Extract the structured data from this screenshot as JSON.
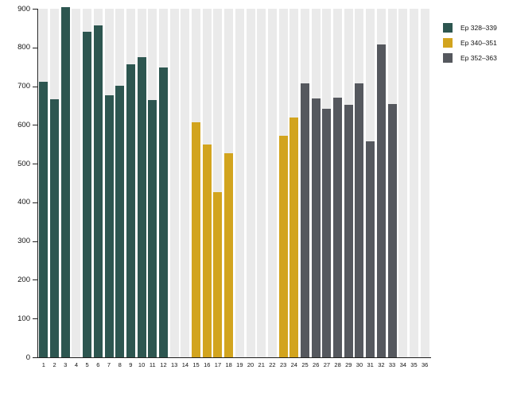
{
  "chart_data": {
    "type": "bar",
    "title": "",
    "xlabel": "",
    "ylabel": "",
    "ylim": [
      0,
      900
    ],
    "ytick_step": 100,
    "yticks": [
      "0",
      "100",
      "200",
      "300",
      "400",
      "500",
      "600",
      "700",
      "800",
      "900"
    ],
    "grid": false,
    "background_bands": true,
    "legend_position": "top-right",
    "categories": [
      "1",
      "2",
      "3",
      "4",
      "5",
      "6",
      "7",
      "8",
      "9",
      "10",
      "11",
      "12",
      "13",
      "14",
      "15",
      "16",
      "17",
      "18",
      "19",
      "20",
      "21",
      "22",
      "23",
      "24",
      "25",
      "26",
      "27",
      "28",
      "29",
      "30",
      "31",
      "32",
      "33",
      "34",
      "35",
      "36"
    ],
    "values": [
      712,
      667,
      905,
      null,
      840,
      856,
      677,
      701,
      756,
      775,
      665,
      749,
      null,
      null,
      606,
      550,
      426,
      527,
      null,
      null,
      null,
      null,
      573,
      620,
      707,
      668,
      641,
      670,
      652,
      708,
      557,
      808,
      653,
      null,
      null,
      null
    ],
    "series": [
      {
        "name": "Ep 328–339",
        "color": "#2d5650",
        "category_range": [
          1,
          12
        ]
      },
      {
        "name": "Ep 340–351",
        "color": "#d2a41e",
        "category_range": [
          13,
          24
        ]
      },
      {
        "name": "Ep 352–363",
        "color": "#55585e",
        "category_range": [
          25,
          36
        ]
      }
    ],
    "colors": {
      "band": "#eaeaea",
      "background": "#ffffff",
      "axis": "#1f1f1f",
      "tick_label": "#111111"
    }
  },
  "legend": {
    "items": [
      {
        "label": "Ep 328–339"
      },
      {
        "label": "Ep 340–351"
      },
      {
        "label": "Ep 352–363"
      }
    ]
  }
}
